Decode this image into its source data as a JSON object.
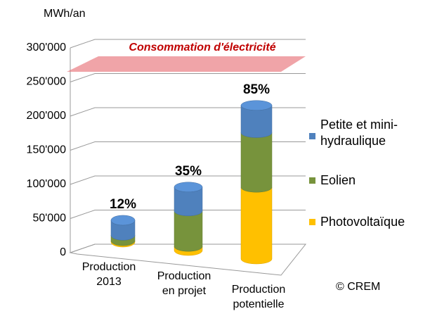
{
  "chart_data": {
    "type": "bar3d_stacked",
    "y_label": "MWh/an",
    "categories": [
      "Production 2013",
      "Production en projet",
      "Production potentielle"
    ],
    "series": [
      {
        "name": "Photovoltaïque",
        "color": "#ffc000",
        "values": [
          2000,
          6000,
          105000
        ]
      },
      {
        "name": "Eolien",
        "color": "#77933c",
        "values": [
          8000,
          52000,
          80000
        ]
      },
      {
        "name": "Petite et mini-hydraulique",
        "color": "#4f81bd",
        "values": [
          22000,
          35000,
          40000
        ]
      }
    ],
    "annotations": [
      "12%",
      "35%",
      "85%"
    ],
    "reference": {
      "label": "Consommation d'électricité",
      "value": 265000,
      "color": "#e8737a"
    },
    "ylim": [
      0,
      300000
    ],
    "yticks": [
      0,
      {
        "value": 50000,
        "label": "50'000"
      },
      {
        "value": 100000,
        "label": "100'000"
      },
      {
        "value": 150000,
        "label": "150'000"
      },
      {
        "value": 200000,
        "label": "200'000"
      },
      {
        "value": 250000,
        "label": "250'000"
      },
      {
        "value": 300000,
        "label": "300'000"
      }
    ],
    "grid": true,
    "source": "© CREM"
  }
}
